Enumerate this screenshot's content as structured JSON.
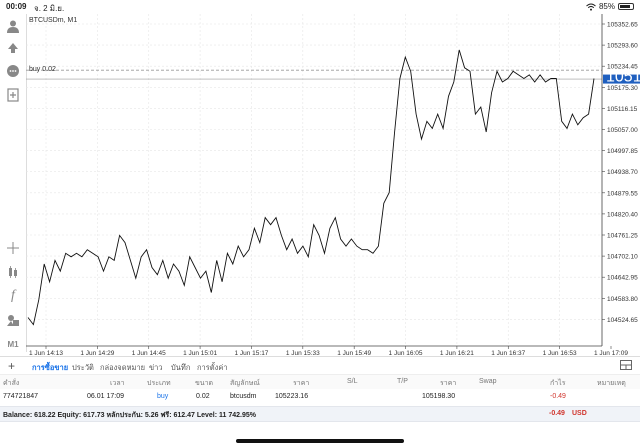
{
  "statusbar": {
    "time": "00:09",
    "date": "จ. 2 มิ.ย.",
    "wifi_icon": "wifi-icon",
    "battery": "85%",
    "battery_level": 0.85
  },
  "chart": {
    "symbol": "BTCUSDm, M1",
    "order_line_label": "buy 0.02",
    "current_price": "105198.30",
    "accent": "#1a73e8",
    "grid_color": "#e6e6e6",
    "line_color": "#111111",
    "price_tag_color": "#1f5fbf"
  },
  "chart_data": {
    "type": "line",
    "title": "BTCUSDm, M1",
    "y_ticks": [
      "105352.65",
      "105293.60",
      "105234.45",
      "105175.30",
      "105116.15",
      "105057.00",
      "104997.85",
      "104938.70",
      "104879.55",
      "104820.40",
      "104761.25",
      "104702.10",
      "104642.95",
      "104583.80",
      "104524.65"
    ],
    "x_ticks": [
      "1 Jun 14:13",
      "1 Jun 14:29",
      "1 Jun 14:45",
      "1 Jun 15:01",
      "1 Jun 15:17",
      "1 Jun 15:33",
      "1 Jun 15:49",
      "1 Jun 16:05",
      "1 Jun 16:21",
      "1 Jun 16:37",
      "1 Jun 16:53",
      "1 Jun 17:09"
    ],
    "ylim": [
      104500,
      105370
    ],
    "order_price": 105223.16,
    "current_price": 105198.3,
    "series": [
      {
        "values": [
          104530,
          104510,
          104580,
          104680,
          104630,
          104690,
          104660,
          104710,
          104700,
          104710,
          104700,
          104720,
          104710,
          104700,
          104660,
          104700,
          104690,
          104760,
          104740,
          104690,
          104640,
          104700,
          104720,
          104670,
          104650,
          104690,
          104640,
          104680,
          104660,
          104620,
          104700,
          104670,
          104640,
          104660,
          104600,
          104690,
          104630,
          104710,
          104680,
          104730,
          104700,
          104720,
          104780,
          104740,
          104810,
          104790,
          104810,
          104760,
          104720,
          104750,
          104710,
          104730,
          104700,
          104790,
          104760,
          104710,
          104780,
          104810,
          104750,
          104730,
          104750,
          104730,
          104720,
          104720,
          104710,
          104730,
          104850,
          104880,
          105050,
          105200,
          105260,
          105220,
          105100,
          105030,
          105080,
          105060,
          105100,
          105060,
          105150,
          105190,
          105280,
          105230,
          105220,
          105100,
          105120,
          105050,
          105160,
          105220,
          105190,
          105200,
          105220,
          105210,
          105200,
          105210,
          105190,
          105210,
          105190,
          105200,
          105200,
          105080,
          105060,
          105100,
          105070,
          105090,
          105100,
          105200
        ]
      }
    ]
  },
  "left_toolbar": {
    "items": [
      "account-icon",
      "one-click-trading-icon",
      "chat-icon",
      "new-order-icon",
      "crosshair-icon",
      "indicators-icon",
      "function-icon",
      "objects-icon"
    ],
    "timeframe": "M1"
  },
  "tabs": {
    "items": [
      {
        "label": "การซื้อขาย",
        "active": true
      },
      {
        "label": "ประวัติ",
        "active": false
      },
      {
        "label": "กล่องจดหมาย",
        "active": false
      },
      {
        "label": "ข่าว",
        "active": false
      },
      {
        "label": "บันทึก",
        "active": false
      },
      {
        "label": "การตั้งค่า",
        "active": false
      }
    ]
  },
  "table": {
    "headers": {
      "order": "คำสั่ง",
      "time": "เวลา",
      "type": "ประเภท",
      "volume": "ขนาด",
      "symbol": "สัญลักษณ์",
      "price": "ราคา",
      "sl": "S/L",
      "tp": "T/P",
      "current": "ราคา",
      "swap": "Swap",
      "profit": "กำไร",
      "note": "หมายเหตุ"
    },
    "row": {
      "order": "774721847",
      "time": "06.01 17:09",
      "type": "buy",
      "volume": "0.02",
      "symbol": "btcusdm",
      "price": "105223.16",
      "current": "105198.30",
      "profit": "-0.49"
    }
  },
  "balance": {
    "text": "Balance: 618.22 Equity: 617.73 หลักประกัน: 5.26 ฟรี: 612.47 Level: 11 742.95%",
    "profit": "-0.49",
    "currency": "USD"
  }
}
